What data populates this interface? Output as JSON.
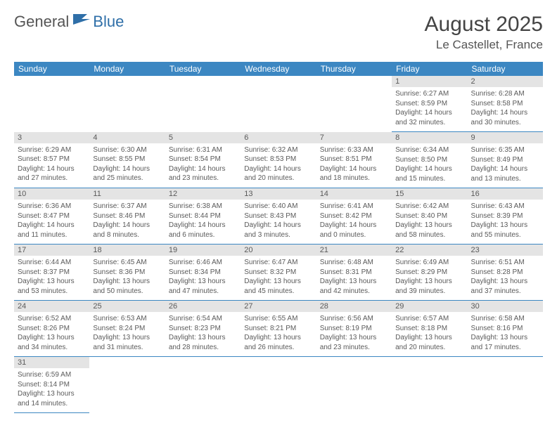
{
  "logo": {
    "part1": "General",
    "part2": "Blue"
  },
  "title": {
    "month": "August 2025",
    "location": "Le Castellet, France"
  },
  "colors": {
    "header_bg": "#3c87c2",
    "header_text": "#ffffff",
    "daynum_bg": "#e4e4e4",
    "text": "#5a5a5a",
    "rule": "#3c87c2"
  },
  "dayNames": [
    "Sunday",
    "Monday",
    "Tuesday",
    "Wednesday",
    "Thursday",
    "Friday",
    "Saturday"
  ],
  "startOffset": 5,
  "days": [
    {
      "n": 1,
      "sr": "6:27 AM",
      "ss": "8:59 PM",
      "dl": "14 hours and 32 minutes."
    },
    {
      "n": 2,
      "sr": "6:28 AM",
      "ss": "8:58 PM",
      "dl": "14 hours and 30 minutes."
    },
    {
      "n": 3,
      "sr": "6:29 AM",
      "ss": "8:57 PM",
      "dl": "14 hours and 27 minutes."
    },
    {
      "n": 4,
      "sr": "6:30 AM",
      "ss": "8:55 PM",
      "dl": "14 hours and 25 minutes."
    },
    {
      "n": 5,
      "sr": "6:31 AM",
      "ss": "8:54 PM",
      "dl": "14 hours and 23 minutes."
    },
    {
      "n": 6,
      "sr": "6:32 AM",
      "ss": "8:53 PM",
      "dl": "14 hours and 20 minutes."
    },
    {
      "n": 7,
      "sr": "6:33 AM",
      "ss": "8:51 PM",
      "dl": "14 hours and 18 minutes."
    },
    {
      "n": 8,
      "sr": "6:34 AM",
      "ss": "8:50 PM",
      "dl": "14 hours and 15 minutes."
    },
    {
      "n": 9,
      "sr": "6:35 AM",
      "ss": "8:49 PM",
      "dl": "14 hours and 13 minutes."
    },
    {
      "n": 10,
      "sr": "6:36 AM",
      "ss": "8:47 PM",
      "dl": "14 hours and 11 minutes."
    },
    {
      "n": 11,
      "sr": "6:37 AM",
      "ss": "8:46 PM",
      "dl": "14 hours and 8 minutes."
    },
    {
      "n": 12,
      "sr": "6:38 AM",
      "ss": "8:44 PM",
      "dl": "14 hours and 6 minutes."
    },
    {
      "n": 13,
      "sr": "6:40 AM",
      "ss": "8:43 PM",
      "dl": "14 hours and 3 minutes."
    },
    {
      "n": 14,
      "sr": "6:41 AM",
      "ss": "8:42 PM",
      "dl": "14 hours and 0 minutes."
    },
    {
      "n": 15,
      "sr": "6:42 AM",
      "ss": "8:40 PM",
      "dl": "13 hours and 58 minutes."
    },
    {
      "n": 16,
      "sr": "6:43 AM",
      "ss": "8:39 PM",
      "dl": "13 hours and 55 minutes."
    },
    {
      "n": 17,
      "sr": "6:44 AM",
      "ss": "8:37 PM",
      "dl": "13 hours and 53 minutes."
    },
    {
      "n": 18,
      "sr": "6:45 AM",
      "ss": "8:36 PM",
      "dl": "13 hours and 50 minutes."
    },
    {
      "n": 19,
      "sr": "6:46 AM",
      "ss": "8:34 PM",
      "dl": "13 hours and 47 minutes."
    },
    {
      "n": 20,
      "sr": "6:47 AM",
      "ss": "8:32 PM",
      "dl": "13 hours and 45 minutes."
    },
    {
      "n": 21,
      "sr": "6:48 AM",
      "ss": "8:31 PM",
      "dl": "13 hours and 42 minutes."
    },
    {
      "n": 22,
      "sr": "6:49 AM",
      "ss": "8:29 PM",
      "dl": "13 hours and 39 minutes."
    },
    {
      "n": 23,
      "sr": "6:51 AM",
      "ss": "8:28 PM",
      "dl": "13 hours and 37 minutes."
    },
    {
      "n": 24,
      "sr": "6:52 AM",
      "ss": "8:26 PM",
      "dl": "13 hours and 34 minutes."
    },
    {
      "n": 25,
      "sr": "6:53 AM",
      "ss": "8:24 PM",
      "dl": "13 hours and 31 minutes."
    },
    {
      "n": 26,
      "sr": "6:54 AM",
      "ss": "8:23 PM",
      "dl": "13 hours and 28 minutes."
    },
    {
      "n": 27,
      "sr": "6:55 AM",
      "ss": "8:21 PM",
      "dl": "13 hours and 26 minutes."
    },
    {
      "n": 28,
      "sr": "6:56 AM",
      "ss": "8:19 PM",
      "dl": "13 hours and 23 minutes."
    },
    {
      "n": 29,
      "sr": "6:57 AM",
      "ss": "8:18 PM",
      "dl": "13 hours and 20 minutes."
    },
    {
      "n": 30,
      "sr": "6:58 AM",
      "ss": "8:16 PM",
      "dl": "13 hours and 17 minutes."
    },
    {
      "n": 31,
      "sr": "6:59 AM",
      "ss": "8:14 PM",
      "dl": "13 hours and 14 minutes."
    }
  ],
  "labels": {
    "sunrise": "Sunrise:",
    "sunset": "Sunset:",
    "daylight": "Daylight:"
  }
}
